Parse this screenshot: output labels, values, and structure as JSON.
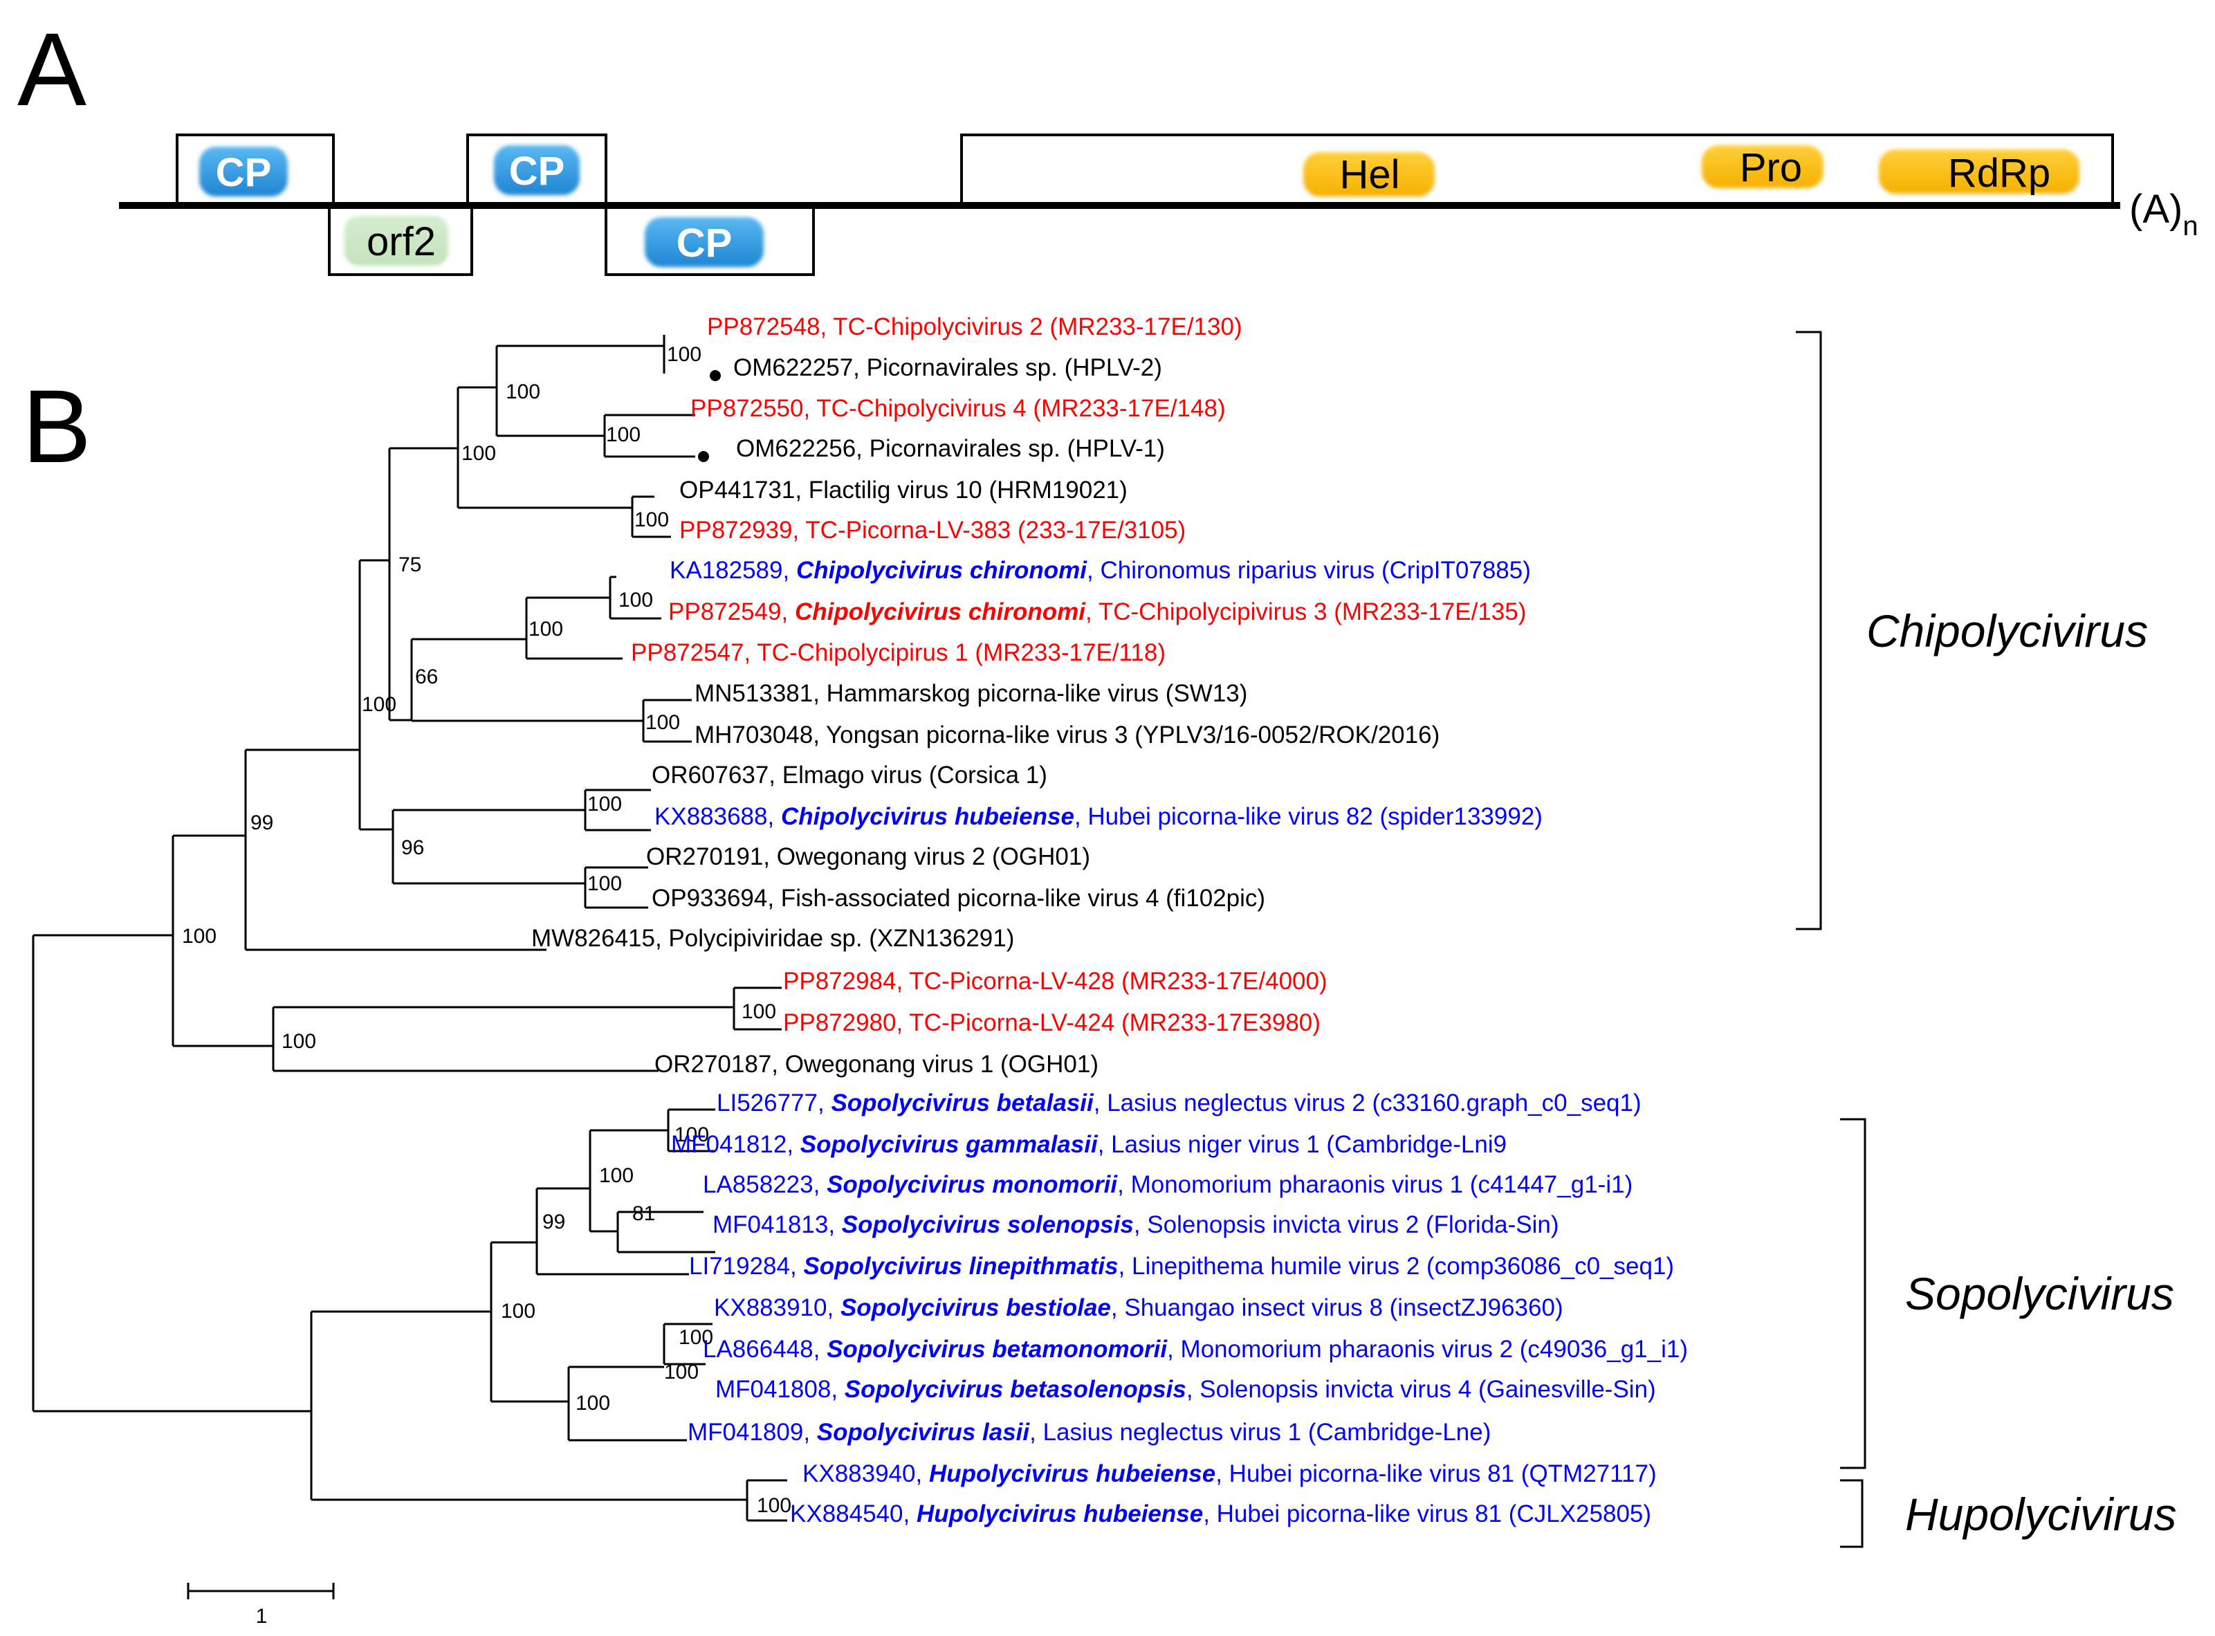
{
  "panel_a": {
    "letter": "A",
    "tail": "(A)",
    "tail_sub": "n",
    "domains": {
      "cp1": "CP",
      "cp2": "CP",
      "cp3": "CP",
      "orf2": "orf2",
      "hel": "Hel",
      "pro": "Pro",
      "rdrp": "RdRp"
    }
  },
  "panel_b": {
    "letter": "B",
    "scale_label": "1",
    "clades": {
      "chipolycivirus": "Chipolycivirus",
      "sopolycivirus": "Sopolycivirus",
      "hupolycivirus": "Hupolycivirus"
    },
    "colors": {
      "red": "#ff0000",
      "blue": "#0000ff",
      "black": "#000000"
    },
    "taxa": [
      {
        "color": "red",
        "parts": [
          {
            "t": "PP872548, TC-Chipolycivirus 2 (MR233-17E/130)"
          }
        ]
      },
      {
        "color": "black",
        "parts": [
          {
            "t": "OM622257, Picornavirales sp. (HPLV-2)"
          }
        ]
      },
      {
        "color": "red",
        "parts": [
          {
            "t": "PP872550, TC-Chipolycivirus 4 (MR233-17E/148)"
          }
        ]
      },
      {
        "color": "black",
        "parts": [
          {
            "t": "OM622256, Picornavirales sp. (HPLV-1)"
          }
        ]
      },
      {
        "color": "black",
        "parts": [
          {
            "t": "OP441731, Flactilig virus 10 (HRM19021)"
          }
        ]
      },
      {
        "color": "red",
        "parts": [
          {
            "t": "PP872939, TC-Picorna-LV-383 (233-17E/3105)"
          }
        ]
      },
      {
        "color": "blue",
        "parts": [
          {
            "t": "KA182589, "
          },
          {
            "t": "Chipolycivirus chironomi",
            "b": true
          },
          {
            "t": ",  Chironomus riparius virus (CripIT07885)"
          }
        ]
      },
      {
        "color": "red",
        "parts": [
          {
            "t": "PP872549, "
          },
          {
            "t": "Chipolycivirus chironomi",
            "b": true
          },
          {
            "t": ", TC-Chipolycipivirus 3 (MR233-17E/135)"
          }
        ]
      },
      {
        "color": "red",
        "parts": [
          {
            "t": "PP872547, TC-Chipolycipirus 1 (MR233-17E/118)"
          }
        ]
      },
      {
        "color": "black",
        "parts": [
          {
            "t": "MN513381, Hammarskog picorna-like virus (SW13)"
          }
        ]
      },
      {
        "color": "black",
        "parts": [
          {
            "t": "MH703048, Yongsan picorna-like virus 3 (YPLV3/16-0052/ROK/2016)"
          }
        ]
      },
      {
        "color": "black",
        "parts": [
          {
            "t": "OR607637, Elmago virus (Corsica 1)"
          }
        ]
      },
      {
        "color": "blue",
        "parts": [
          {
            "t": "KX883688, "
          },
          {
            "t": "Chipolycivirus hubeiense",
            "b": true
          },
          {
            "t": ", Hubei picorna-like virus 82 (spider133992)"
          }
        ]
      },
      {
        "color": "black",
        "parts": [
          {
            "t": "OR270191, Owegonang virus 2 (OGH01)"
          }
        ]
      },
      {
        "color": "black",
        "parts": [
          {
            "t": "OP933694, Fish-associated picorna-like virus 4 (fi102pic)"
          }
        ]
      },
      {
        "color": "black",
        "parts": [
          {
            "t": "MW826415, Polycipiviridae sp. (XZN136291)"
          }
        ]
      },
      {
        "color": "red",
        "parts": [
          {
            "t": "PP872984, TC-Picorna-LV-428 (MR233-17E/4000)"
          }
        ]
      },
      {
        "color": "red",
        "parts": [
          {
            "t": "PP872980, TC-Picorna-LV-424 (MR233-17E3980)"
          }
        ]
      },
      {
        "color": "black",
        "parts": [
          {
            "t": "OR270187, Owegonang virus 1 (OGH01)"
          }
        ]
      },
      {
        "color": "blue",
        "parts": [
          {
            "t": "LI526777, "
          },
          {
            "t": "Sopolycivirus betalasii",
            "b": true
          },
          {
            "t": ", Lasius neglectus virus 2 (c33160.graph_c0_seq1)"
          }
        ]
      },
      {
        "color": "blue",
        "parts": [
          {
            "t": "MF041812, "
          },
          {
            "t": "Sopolycivirus gammalasii",
            "b": true
          },
          {
            "t": ", Lasius niger virus 1 (Cambridge-Lni9"
          }
        ]
      },
      {
        "color": "blue",
        "parts": [
          {
            "t": "LA858223, "
          },
          {
            "t": "Sopolycivirus monomorii",
            "b": true
          },
          {
            "t": ", Monomorium pharaonis virus 1 (c41447_g1-i1)"
          }
        ]
      },
      {
        "color": "blue",
        "parts": [
          {
            "t": "MF041813, "
          },
          {
            "t": "Sopolycivirus solenopsis",
            "b": true
          },
          {
            "t": ", Solenopsis invicta virus 2 (Florida-Sin)"
          }
        ]
      },
      {
        "color": "blue",
        "parts": [
          {
            "t": "LI719284, "
          },
          {
            "t": "Sopolycivirus linepithmatis",
            "b": true
          },
          {
            "t": ", Linepithema humile virus 2 (comp36086_c0_seq1)"
          }
        ]
      },
      {
        "color": "blue",
        "parts": [
          {
            "t": "KX883910, "
          },
          {
            "t": "Sopolycivirus bestiolae",
            "b": true
          },
          {
            "t": ", Shuangao insect virus 8 (insectZJ96360)"
          }
        ]
      },
      {
        "color": "blue",
        "parts": [
          {
            "t": "LA866448, "
          },
          {
            "t": "Sopolycivirus betamonomorii",
            "b": true
          },
          {
            "t": ", Monomorium pharaonis virus 2 (c49036_g1_i1)"
          }
        ]
      },
      {
        "color": "blue",
        "parts": [
          {
            "t": "MF041808, "
          },
          {
            "t": "Sopolycivirus betasolenopsis",
            "b": true
          },
          {
            "t": ", Solenopsis invicta virus 4 (Gainesville-Sin)"
          }
        ]
      },
      {
        "color": "blue",
        "parts": [
          {
            "t": "MF041809, "
          },
          {
            "t": "Sopolycivirus lasii",
            "b": true
          },
          {
            "t": ", Lasius neglectus virus 1 (Cambridge-Lne)"
          }
        ]
      },
      {
        "color": "blue",
        "parts": [
          {
            "t": "KX883940, "
          },
          {
            "t": "Hupolycivirus hubeiense",
            "b": true
          },
          {
            "t": ", Hubei picorna-like virus 81 (QTM27117)"
          }
        ]
      },
      {
        "color": "blue",
        "parts": [
          {
            "t": "KX884540, "
          },
          {
            "t": "Hupolycivirus hubeiense",
            "b": true
          },
          {
            "t": ", Hubei picorna-like virus 81 (CJLX25805)"
          }
        ]
      }
    ],
    "bootstrap": {
      "n1": "100",
      "n2": "100",
      "n3": "100",
      "n4": "100",
      "n5": "100",
      "n6": "75",
      "n7": "100",
      "n8": "100",
      "n9": "66",
      "n10": "100",
      "n11": "100",
      "n12": "96",
      "n13": "100",
      "n14": "99",
      "n15": "100",
      "n16": "100",
      "n17": "100",
      "n18": "100",
      "n19": "100",
      "n20": "100",
      "n21": "99",
      "n22": "81",
      "n23": "100",
      "n24": "100",
      "n25": "100",
      "n26": "100",
      "n27": "100"
    }
  }
}
